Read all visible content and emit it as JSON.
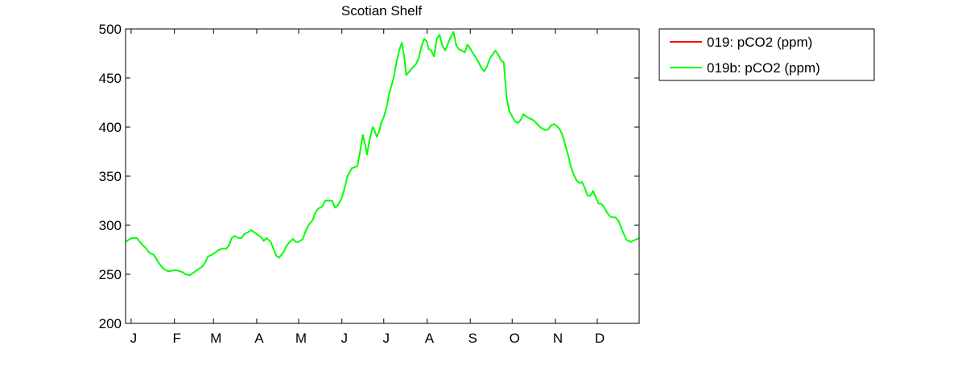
{
  "chart_data": {
    "type": "line",
    "title": "Scotian Shelf",
    "xlabel": "",
    "ylabel": "",
    "x_tick_labels": [
      "J",
      "F",
      "M",
      "A",
      "M",
      "J",
      "J",
      "A",
      "S",
      "O",
      "N",
      "D"
    ],
    "x_tick_days": [
      1,
      32,
      60,
      91,
      121,
      152,
      182,
      213,
      244,
      274,
      305,
      335
    ],
    "xlim": [
      -3,
      365
    ],
    "ylim": [
      200,
      500
    ],
    "y_ticks": [
      200,
      250,
      300,
      350,
      400,
      450,
      500
    ],
    "grid": false,
    "legend_position": "outside-right",
    "series": [
      {
        "name": "019: pCO2 (ppm)",
        "color": "#ff0000",
        "points": []
      },
      {
        "name": "019b: pCO2 (ppm)",
        "color": "#00ff00",
        "points": [
          [
            -3,
            283
          ],
          [
            0,
            286
          ],
          [
            2,
            287
          ],
          [
            5,
            287
          ],
          [
            9,
            280
          ],
          [
            12,
            276
          ],
          [
            14,
            272
          ],
          [
            17,
            270
          ],
          [
            19,
            266
          ],
          [
            21,
            261
          ],
          [
            24,
            256
          ],
          [
            26,
            254
          ],
          [
            28,
            253
          ],
          [
            31,
            254
          ],
          [
            34,
            254
          ],
          [
            36,
            253
          ],
          [
            38,
            252
          ],
          [
            40,
            250
          ],
          [
            43,
            249
          ],
          [
            45,
            251
          ],
          [
            47,
            253
          ],
          [
            50,
            256
          ],
          [
            52,
            258
          ],
          [
            54,
            262
          ],
          [
            56,
            268
          ],
          [
            59,
            270
          ],
          [
            61,
            272
          ],
          [
            64,
            275
          ],
          [
            66,
            276
          ],
          [
            69,
            276
          ],
          [
            71,
            279
          ],
          [
            73,
            287
          ],
          [
            75,
            289
          ],
          [
            78,
            287
          ],
          [
            80,
            287
          ],
          [
            82,
            291
          ],
          [
            85,
            293
          ],
          [
            87,
            295
          ],
          [
            89,
            293
          ],
          [
            91,
            291
          ],
          [
            94,
            288
          ],
          [
            96,
            284
          ],
          [
            98,
            287
          ],
          [
            101,
            283
          ],
          [
            103,
            276
          ],
          [
            105,
            269
          ],
          [
            107,
            267
          ],
          [
            110,
            272
          ],
          [
            112,
            278
          ],
          [
            114,
            282
          ],
          [
            117,
            286
          ],
          [
            119,
            283
          ],
          [
            121,
            283
          ],
          [
            124,
            286
          ],
          [
            126,
            294
          ],
          [
            128,
            300
          ],
          [
            131,
            305
          ],
          [
            133,
            313
          ],
          [
            135,
            317
          ],
          [
            138,
            319
          ],
          [
            140,
            325
          ],
          [
            142,
            325
          ],
          [
            145,
            325
          ],
          [
            147,
            318
          ],
          [
            149,
            320
          ],
          [
            152,
            328
          ],
          [
            154,
            338
          ],
          [
            156,
            350
          ],
          [
            159,
            358
          ],
          [
            161,
            359
          ],
          [
            163,
            360
          ],
          [
            165,
            375
          ],
          [
            167,
            392
          ],
          [
            169,
            380
          ],
          [
            170,
            372
          ],
          [
            172,
            388
          ],
          [
            174,
            400
          ],
          [
            175,
            398
          ],
          [
            177,
            390
          ],
          [
            179,
            397
          ],
          [
            180,
            404
          ],
          [
            182,
            410
          ],
          [
            184,
            420
          ],
          [
            186,
            435
          ],
          [
            189,
            450
          ],
          [
            191,
            465
          ],
          [
            193,
            478
          ],
          [
            195,
            486
          ],
          [
            197,
            468
          ],
          [
            198,
            453
          ],
          [
            200,
            456
          ],
          [
            203,
            461
          ],
          [
            205,
            464
          ],
          [
            207,
            470
          ],
          [
            209,
            482
          ],
          [
            211,
            490
          ],
          [
            213,
            487
          ],
          [
            214,
            480
          ],
          [
            216,
            478
          ],
          [
            218,
            472
          ],
          [
            220,
            490
          ],
          [
            222,
            494
          ],
          [
            224,
            483
          ],
          [
            226,
            478
          ],
          [
            228,
            485
          ],
          [
            230,
            492
          ],
          [
            232,
            497
          ],
          [
            234,
            483
          ],
          [
            236,
            479
          ],
          [
            238,
            478
          ],
          [
            240,
            476
          ],
          [
            242,
            484
          ],
          [
            244,
            480
          ],
          [
            246,
            475
          ],
          [
            248,
            471
          ],
          [
            250,
            466
          ],
          [
            252,
            460
          ],
          [
            254,
            457
          ],
          [
            256,
            462
          ],
          [
            258,
            470
          ],
          [
            260,
            474
          ],
          [
            262,
            478
          ],
          [
            264,
            474
          ],
          [
            266,
            468
          ],
          [
            268,
            466
          ],
          [
            270,
            430
          ],
          [
            272,
            416
          ],
          [
            274,
            411
          ],
          [
            276,
            406
          ],
          [
            278,
            404
          ],
          [
            280,
            407
          ],
          [
            282,
            413
          ],
          [
            284,
            411
          ],
          [
            286,
            409
          ],
          [
            288,
            408
          ],
          [
            290,
            406
          ],
          [
            292,
            403
          ],
          [
            294,
            400
          ],
          [
            296,
            398
          ],
          [
            298,
            397
          ],
          [
            300,
            398
          ],
          [
            302,
            402
          ],
          [
            304,
            403
          ],
          [
            306,
            401
          ],
          [
            308,
            398
          ],
          [
            310,
            392
          ],
          [
            312,
            382
          ],
          [
            314,
            372
          ],
          [
            316,
            360
          ],
          [
            318,
            352
          ],
          [
            320,
            346
          ],
          [
            322,
            343
          ],
          [
            324,
            344
          ],
          [
            326,
            338
          ],
          [
            328,
            330
          ],
          [
            330,
            330
          ],
          [
            332,
            335
          ],
          [
            334,
            328
          ],
          [
            336,
            322
          ],
          [
            338,
            322
          ],
          [
            340,
            318
          ],
          [
            342,
            313
          ],
          [
            344,
            309
          ],
          [
            346,
            308
          ],
          [
            348,
            308
          ],
          [
            350,
            305
          ],
          [
            352,
            298
          ],
          [
            354,
            291
          ],
          [
            356,
            285
          ],
          [
            359,
            283
          ],
          [
            362,
            285
          ],
          [
            365,
            287
          ]
        ]
      }
    ]
  }
}
